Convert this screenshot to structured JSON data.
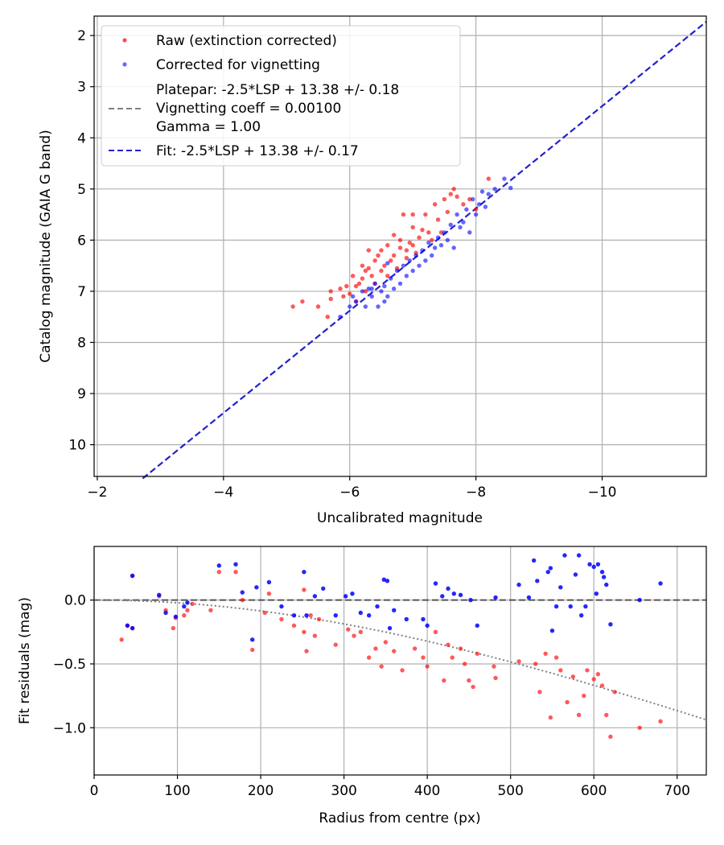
{
  "chart_data": [
    {
      "type": "scatter",
      "xlabel": "Uncalibrated magnitude",
      "ylabel": "Catalog magnitude (GAIA G band)",
      "xlim": [
        -1.95,
        -11.65
      ],
      "ylim": [
        10.62,
        1.62
      ],
      "x_ticks": [
        -2,
        -4,
        -6,
        -8,
        -10
      ],
      "x_tick_labels": [
        "−2",
        "−4",
        "−6",
        "−8",
        "−10"
      ],
      "y_ticks": [
        2,
        3,
        4,
        5,
        6,
        7,
        8,
        9,
        10
      ],
      "y_tick_labels": [
        "2",
        "3",
        "4",
        "5",
        "6",
        "7",
        "8",
        "9",
        "10"
      ],
      "grid": true,
      "legend": {
        "position": "top-left",
        "entries": [
          {
            "label": "Raw (extinction corrected)",
            "marker": "dot",
            "color": "#ff0000"
          },
          {
            "label": "Corrected for vignetting",
            "marker": "dot",
            "color": "#0000ff"
          },
          {
            "label": "Platepar: -2.5*LSP + 13.38 +/- 0.18",
            "marker": "none"
          },
          {
            "label": "Vignetting coeff = 0.00100",
            "marker": "dash",
            "color": "#808080"
          },
          {
            "label": "Gamma = 1.00",
            "marker": "none"
          },
          {
            "label": "Fit: -2.5*LSP + 13.38 +/- 0.17",
            "marker": "dash",
            "color": "#2222cc"
          }
        ]
      },
      "lines": [
        {
          "name": "Fit",
          "slope": 1.0,
          "intercept": 13.38,
          "style": "dashed",
          "color": "#2222cc"
        }
      ],
      "series": [
        {
          "name": "Raw (extinction corrected)",
          "color": "#ff0000",
          "points": [
            [
              -5.1,
              7.3
            ],
            [
              -5.25,
              7.2
            ],
            [
              -5.5,
              7.3
            ],
            [
              -5.65,
              7.5
            ],
            [
              -5.7,
              7.0
            ],
            [
              -5.7,
              7.15
            ],
            [
              -5.85,
              6.95
            ],
            [
              -5.9,
              7.1
            ],
            [
              -5.95,
              6.9
            ],
            [
              -6.0,
              7.05
            ],
            [
              -6.05,
              6.7
            ],
            [
              -6.1,
              6.9
            ],
            [
              -6.1,
              7.2
            ],
            [
              -6.15,
              6.85
            ],
            [
              -6.2,
              6.5
            ],
            [
              -6.2,
              6.75
            ],
            [
              -6.25,
              6.6
            ],
            [
              -6.25,
              7.0
            ],
            [
              -6.3,
              6.2
            ],
            [
              -6.3,
              6.55
            ],
            [
              -6.35,
              6.7
            ],
            [
              -6.4,
              6.4
            ],
            [
              -6.4,
              6.85
            ],
            [
              -6.45,
              6.3
            ],
            [
              -6.5,
              6.6
            ],
            [
              -6.5,
              6.2
            ],
            [
              -6.55,
              6.5
            ],
            [
              -6.6,
              6.7
            ],
            [
              -6.6,
              6.1
            ],
            [
              -6.65,
              6.4
            ],
            [
              -6.7,
              5.9
            ],
            [
              -6.7,
              6.3
            ],
            [
              -6.75,
              6.55
            ],
            [
              -6.8,
              6.15
            ],
            [
              -6.8,
              6.0
            ],
            [
              -6.85,
              5.5
            ],
            [
              -6.9,
              6.2
            ],
            [
              -6.9,
              6.35
            ],
            [
              -6.95,
              6.05
            ],
            [
              -7.0,
              5.75
            ],
            [
              -7.0,
              6.1
            ],
            [
              -7.05,
              6.25
            ],
            [
              -7.1,
              5.95
            ],
            [
              -7.15,
              5.8
            ],
            [
              -7.2,
              5.5
            ],
            [
              -7.25,
              5.85
            ],
            [
              -7.3,
              6.0
            ],
            [
              -7.35,
              5.3
            ],
            [
              -7.4,
              5.6
            ],
            [
              -7.45,
              5.85
            ],
            [
              -7.5,
              5.2
            ],
            [
              -7.55,
              5.45
            ],
            [
              -7.6,
              5.1
            ],
            [
              -7.65,
              5.0
            ],
            [
              -7.7,
              5.15
            ],
            [
              -7.8,
              5.3
            ],
            [
              -7.9,
              5.2
            ],
            [
              -8.0,
              5.4
            ],
            [
              -8.2,
              4.8
            ],
            [
              -7.0,
              5.5
            ]
          ]
        },
        {
          "name": "Corrected for vignetting",
          "color": "#0000ff",
          "points": [
            [
              -5.85,
              7.5
            ],
            [
              -6.0,
              7.3
            ],
            [
              -6.05,
              7.1
            ],
            [
              -6.1,
              7.2
            ],
            [
              -6.2,
              7.0
            ],
            [
              -6.25,
              7.3
            ],
            [
              -6.3,
              6.95
            ],
            [
              -6.35,
              7.1
            ],
            [
              -6.4,
              6.85
            ],
            [
              -6.45,
              7.3
            ],
            [
              -6.5,
              7.0
            ],
            [
              -6.55,
              6.9
            ],
            [
              -6.6,
              7.1
            ],
            [
              -6.65,
              6.75
            ],
            [
              -6.7,
              6.95
            ],
            [
              -6.75,
              6.6
            ],
            [
              -6.8,
              6.85
            ],
            [
              -6.85,
              6.5
            ],
            [
              -6.9,
              6.7
            ],
            [
              -6.95,
              6.4
            ],
            [
              -7.0,
              6.6
            ],
            [
              -7.05,
              6.3
            ],
            [
              -7.1,
              6.5
            ],
            [
              -7.15,
              6.2
            ],
            [
              -7.2,
              6.4
            ],
            [
              -7.25,
              6.05
            ],
            [
              -7.3,
              6.3
            ],
            [
              -7.35,
              6.15
            ],
            [
              -7.4,
              5.95
            ],
            [
              -7.45,
              6.1
            ],
            [
              -7.5,
              5.85
            ],
            [
              -7.55,
              6.0
            ],
            [
              -7.6,
              5.7
            ],
            [
              -7.65,
              6.15
            ],
            [
              -7.7,
              5.5
            ],
            [
              -7.75,
              5.75
            ],
            [
              -7.8,
              5.65
            ],
            [
              -7.85,
              5.4
            ],
            [
              -7.9,
              5.85
            ],
            [
              -7.95,
              5.2
            ],
            [
              -8.0,
              5.5
            ],
            [
              -8.05,
              5.3
            ],
            [
              -8.1,
              5.05
            ],
            [
              -8.15,
              5.35
            ],
            [
              -8.2,
              5.1
            ],
            [
              -8.3,
              5.0
            ],
            [
              -8.45,
              4.8
            ],
            [
              -8.55,
              4.98
            ],
            [
              -6.55,
              7.2
            ],
            [
              -6.35,
              6.95
            ],
            [
              -6.6,
              6.45
            ]
          ]
        }
      ]
    },
    {
      "type": "scatter",
      "xlabel": "Radius from centre (px)",
      "ylabel": "Fit residuals (mag)",
      "xlim": [
        0,
        735
      ],
      "ylim": [
        -1.37,
        0.42
      ],
      "x_ticks": [
        0,
        100,
        200,
        300,
        400,
        500,
        600,
        700
      ],
      "x_tick_labels": [
        "0",
        "100",
        "200",
        "300",
        "400",
        "500",
        "600",
        "700"
      ],
      "y_ticks": [
        0.0,
        -0.5,
        -1.0
      ],
      "y_tick_labels": [
        "0.0",
        "−0.5",
        "−1.0"
      ],
      "grid": true,
      "lines": [
        {
          "name": "zero",
          "y": 0.0,
          "style": "dashed",
          "color": "#555555"
        },
        {
          "name": "vignetting model",
          "coeff": 0.001,
          "style": "dotted",
          "color": "#808080"
        }
      ],
      "series": [
        {
          "name": "Raw",
          "color": "#ff0000",
          "points": [
            [
              33,
              -0.31
            ],
            [
              40,
              -0.2
            ],
            [
              46,
              -0.22
            ],
            [
              46,
              0.19
            ],
            [
              78,
              0.03
            ],
            [
              86,
              -0.08
            ],
            [
              95,
              -0.22
            ],
            [
              98,
              -0.14
            ],
            [
              108,
              -0.12
            ],
            [
              112,
              -0.08
            ],
            [
              118,
              -0.03
            ],
            [
              140,
              -0.08
            ],
            [
              150,
              0.22
            ],
            [
              170,
              0.22
            ],
            [
              178,
              0.0
            ],
            [
              190,
              -0.39
            ],
            [
              205,
              -0.1
            ],
            [
              210,
              0.05
            ],
            [
              225,
              -0.15
            ],
            [
              240,
              -0.2
            ],
            [
              252,
              -0.25
            ],
            [
              255,
              -0.4
            ],
            [
              260,
              -0.12
            ],
            [
              265,
              -0.28
            ],
            [
              270,
              -0.15
            ],
            [
              290,
              -0.35
            ],
            [
              305,
              -0.23
            ],
            [
              312,
              -0.28
            ],
            [
              320,
              -0.25
            ],
            [
              330,
              -0.45
            ],
            [
              338,
              -0.38
            ],
            [
              345,
              -0.52
            ],
            [
              350,
              -0.33
            ],
            [
              360,
              -0.4
            ],
            [
              370,
              -0.55
            ],
            [
              385,
              -0.38
            ],
            [
              395,
              -0.45
            ],
            [
              400,
              -0.52
            ],
            [
              410,
              -0.25
            ],
            [
              420,
              -0.63
            ],
            [
              425,
              -0.35
            ],
            [
              430,
              -0.45
            ],
            [
              440,
              -0.38
            ],
            [
              445,
              -0.5
            ],
            [
              450,
              -0.63
            ],
            [
              455,
              -0.68
            ],
            [
              460,
              -0.42
            ],
            [
              480,
              -0.52
            ],
            [
              482,
              -0.61
            ],
            [
              510,
              -0.48
            ],
            [
              530,
              -0.5
            ],
            [
              535,
              -0.72
            ],
            [
              542,
              -0.42
            ],
            [
              548,
              -0.92
            ],
            [
              555,
              -0.45
            ],
            [
              560,
              -0.55
            ],
            [
              568,
              -0.8
            ],
            [
              575,
              -0.6
            ],
            [
              582,
              -0.9
            ],
            [
              588,
              -0.75
            ],
            [
              592,
              -0.55
            ],
            [
              600,
              -0.62
            ],
            [
              605,
              -0.58
            ],
            [
              610,
              -0.67
            ],
            [
              615,
              -0.9
            ],
            [
              620,
              -1.07
            ],
            [
              625,
              -0.72
            ],
            [
              655,
              -1.0
            ],
            [
              680,
              -0.95
            ],
            [
              252,
              0.08
            ]
          ]
        },
        {
          "name": "Corrected",
          "color": "#0000ff",
          "points": [
            [
              40,
              -0.2
            ],
            [
              46,
              0.19
            ],
            [
              46,
              -0.22
            ],
            [
              78,
              0.04
            ],
            [
              86,
              -0.1
            ],
            [
              98,
              -0.13
            ],
            [
              108,
              -0.05
            ],
            [
              112,
              -0.02
            ],
            [
              150,
              0.27
            ],
            [
              170,
              0.28
            ],
            [
              178,
              0.06
            ],
            [
              190,
              -0.31
            ],
            [
              195,
              0.1
            ],
            [
              210,
              0.14
            ],
            [
              225,
              -0.05
            ],
            [
              240,
              -0.12
            ],
            [
              252,
              0.22
            ],
            [
              255,
              -0.12
            ],
            [
              265,
              0.03
            ],
            [
              275,
              0.09
            ],
            [
              290,
              -0.12
            ],
            [
              302,
              0.03
            ],
            [
              310,
              0.05
            ],
            [
              320,
              -0.1
            ],
            [
              330,
              -0.12
            ],
            [
              340,
              -0.05
            ],
            [
              348,
              0.16
            ],
            [
              352,
              0.15
            ],
            [
              355,
              -0.22
            ],
            [
              360,
              -0.08
            ],
            [
              375,
              -0.15
            ],
            [
              395,
              -0.15
            ],
            [
              400,
              -0.2
            ],
            [
              410,
              0.13
            ],
            [
              418,
              0.03
            ],
            [
              425,
              0.09
            ],
            [
              432,
              0.05
            ],
            [
              440,
              0.04
            ],
            [
              452,
              0.0
            ],
            [
              460,
              -0.2
            ],
            [
              482,
              0.02
            ],
            [
              510,
              0.12
            ],
            [
              522,
              0.02
            ],
            [
              528,
              0.31
            ],
            [
              532,
              0.15
            ],
            [
              545,
              0.22
            ],
            [
              550,
              -0.24
            ],
            [
              555,
              -0.05
            ],
            [
              560,
              0.1
            ],
            [
              565,
              0.35
            ],
            [
              572,
              -0.05
            ],
            [
              578,
              0.2
            ],
            [
              582,
              0.35
            ],
            [
              585,
              -0.12
            ],
            [
              590,
              -0.05
            ],
            [
              595,
              0.28
            ],
            [
              600,
              0.26
            ],
            [
              603,
              0.05
            ],
            [
              605,
              0.28
            ],
            [
              610,
              0.22
            ],
            [
              615,
              0.12
            ],
            [
              620,
              -0.19
            ],
            [
              655,
              0.0
            ],
            [
              680,
              0.13
            ],
            [
              612,
              0.18
            ],
            [
              548,
              0.25
            ]
          ]
        }
      ]
    }
  ]
}
